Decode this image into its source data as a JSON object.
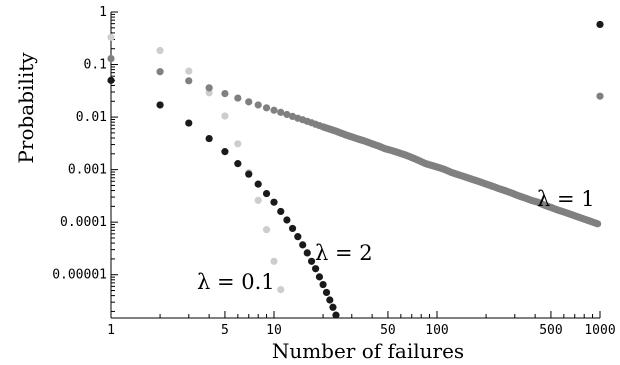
{
  "chart_data": {
    "type": "scatter",
    "title": "",
    "xlabel": "Number of failures",
    "ylabel": "Probability",
    "x_scale": "log",
    "y_scale": "log",
    "xlim": [
      1,
      1000
    ],
    "ylim": [
      1.5e-06,
      1
    ],
    "grid": false,
    "legend": "none",
    "x_ticks": [
      {
        "value": 1,
        "label": "1"
      },
      {
        "value": 5,
        "label": "5"
      },
      {
        "value": 10,
        "label": "10"
      },
      {
        "value": 50,
        "label": "50"
      },
      {
        "value": 100,
        "label": "100"
      },
      {
        "value": 500,
        "label": "500"
      },
      {
        "value": 1000,
        "label": "1000"
      }
    ],
    "y_ticks": [
      {
        "value": 1,
        "label": "1"
      },
      {
        "value": 0.1,
        "label": "0.1"
      },
      {
        "value": 0.01,
        "label": "0.01"
      },
      {
        "value": 0.001,
        "label": "0.001"
      },
      {
        "value": 0.0001,
        "label": "0.0001"
      },
      {
        "value": 1e-05,
        "label": "0.00001"
      }
    ],
    "annotations": [
      {
        "text": "λ = 1",
        "series": "λ = 1"
      },
      {
        "text": "λ = 2",
        "series": "λ = 2"
      },
      {
        "text": "λ = 0.1",
        "series": "λ = 0.1"
      }
    ],
    "series": [
      {
        "name": "λ = 0.1",
        "color": "#cdcdcd",
        "points": [
          [
            1,
            0.33
          ],
          [
            2,
            0.185
          ],
          [
            3,
            0.075
          ],
          [
            4,
            0.029
          ],
          [
            5,
            0.0105
          ],
          [
            6,
            0.0031
          ],
          [
            7,
            0.00088
          ],
          [
            8,
            0.00026
          ],
          [
            9,
            7.2e-05
          ],
          [
            10,
            1.8e-05
          ],
          [
            11,
            5.2e-06
          ],
          [
            12,
            1.4e-06
          ]
        ]
      },
      {
        "name": "λ = 1",
        "color": "#808080",
        "points": [
          [
            1,
            0.13
          ],
          [
            2,
            0.073
          ],
          [
            3,
            0.049
          ],
          [
            4,
            0.036
          ],
          [
            5,
            0.028
          ],
          [
            6,
            0.023
          ],
          [
            7,
            0.0195
          ],
          [
            8,
            0.017
          ],
          [
            9,
            0.015
          ],
          [
            10,
            0.0135
          ],
          [
            11,
            0.0123
          ],
          [
            12,
            0.0112
          ],
          [
            13,
            0.0103
          ],
          [
            14,
            0.0095
          ],
          [
            15,
            0.0089
          ],
          [
            16,
            0.0083
          ],
          [
            17,
            0.0078
          ],
          [
            18,
            0.0073
          ],
          [
            19,
            0.0069
          ],
          [
            20,
            0.0065
          ],
          [
            22,
            0.0059
          ],
          [
            24,
            0.0054
          ],
          [
            26,
            0.0049
          ],
          [
            28,
            0.0045
          ],
          [
            30,
            0.0042
          ],
          [
            33,
            0.0038
          ],
          [
            36,
            0.0035
          ],
          [
            40,
            0.0031
          ],
          [
            44,
            0.0028
          ],
          [
            48,
            0.0025
          ],
          [
            53,
            0.0023
          ],
          [
            58,
            0.0021
          ],
          [
            64,
            0.0019
          ],
          [
            70,
            0.0017
          ],
          [
            77,
            0.0015
          ],
          [
            85,
            0.0013
          ],
          [
            93,
            0.0012
          ],
          [
            102,
            0.0011
          ],
          [
            112,
            0.001
          ],
          [
            123,
            0.00088
          ],
          [
            135,
            0.0008
          ],
          [
            148,
            0.00073
          ],
          [
            163,
            0.00066
          ],
          [
            179,
            0.0006
          ],
          [
            197,
            0.00054
          ],
          [
            216,
            0.00049
          ],
          [
            237,
            0.00044
          ],
          [
            260,
            0.0004
          ],
          [
            286,
            0.00036
          ],
          [
            314,
            0.00032
          ],
          [
            345,
            0.00029
          ],
          [
            379,
            0.00026
          ],
          [
            416,
            0.00024
          ],
          [
            457,
            0.00021
          ],
          [
            502,
            0.00019
          ],
          [
            551,
            0.00017
          ],
          [
            605,
            0.000155
          ],
          [
            665,
            0.00014
          ],
          [
            730,
            0.000126
          ],
          [
            802,
            0.000114
          ],
          [
            881,
            0.000103
          ],
          [
            967,
            9.3e-05
          ],
          [
            1000,
            0.025
          ]
        ]
      },
      {
        "name": "λ = 2",
        "color": "#1a1a1a",
        "points": [
          [
            1,
            0.05
          ],
          [
            2,
            0.017
          ],
          [
            3,
            0.0077
          ],
          [
            4,
            0.0039
          ],
          [
            5,
            0.0022
          ],
          [
            6,
            0.0013
          ],
          [
            7,
            0.00082
          ],
          [
            8,
            0.00053
          ],
          [
            9,
            0.00035
          ],
          [
            10,
            0.00024
          ],
          [
            11,
            0.00016
          ],
          [
            12,
            0.00011
          ],
          [
            13,
            7.6e-05
          ],
          [
            14,
            5.3e-05
          ],
          [
            15,
            3.7e-05
          ],
          [
            16,
            2.6e-05
          ],
          [
            17,
            1.8e-05
          ],
          [
            18,
            1.3e-05
          ],
          [
            19,
            9.1e-06
          ],
          [
            20,
            6.5e-06
          ],
          [
            21,
            4.6e-06
          ],
          [
            22,
            3.3e-06
          ],
          [
            23,
            2.4e-06
          ],
          [
            24,
            1.7e-06
          ],
          [
            1000,
            0.58
          ]
        ]
      }
    ]
  }
}
